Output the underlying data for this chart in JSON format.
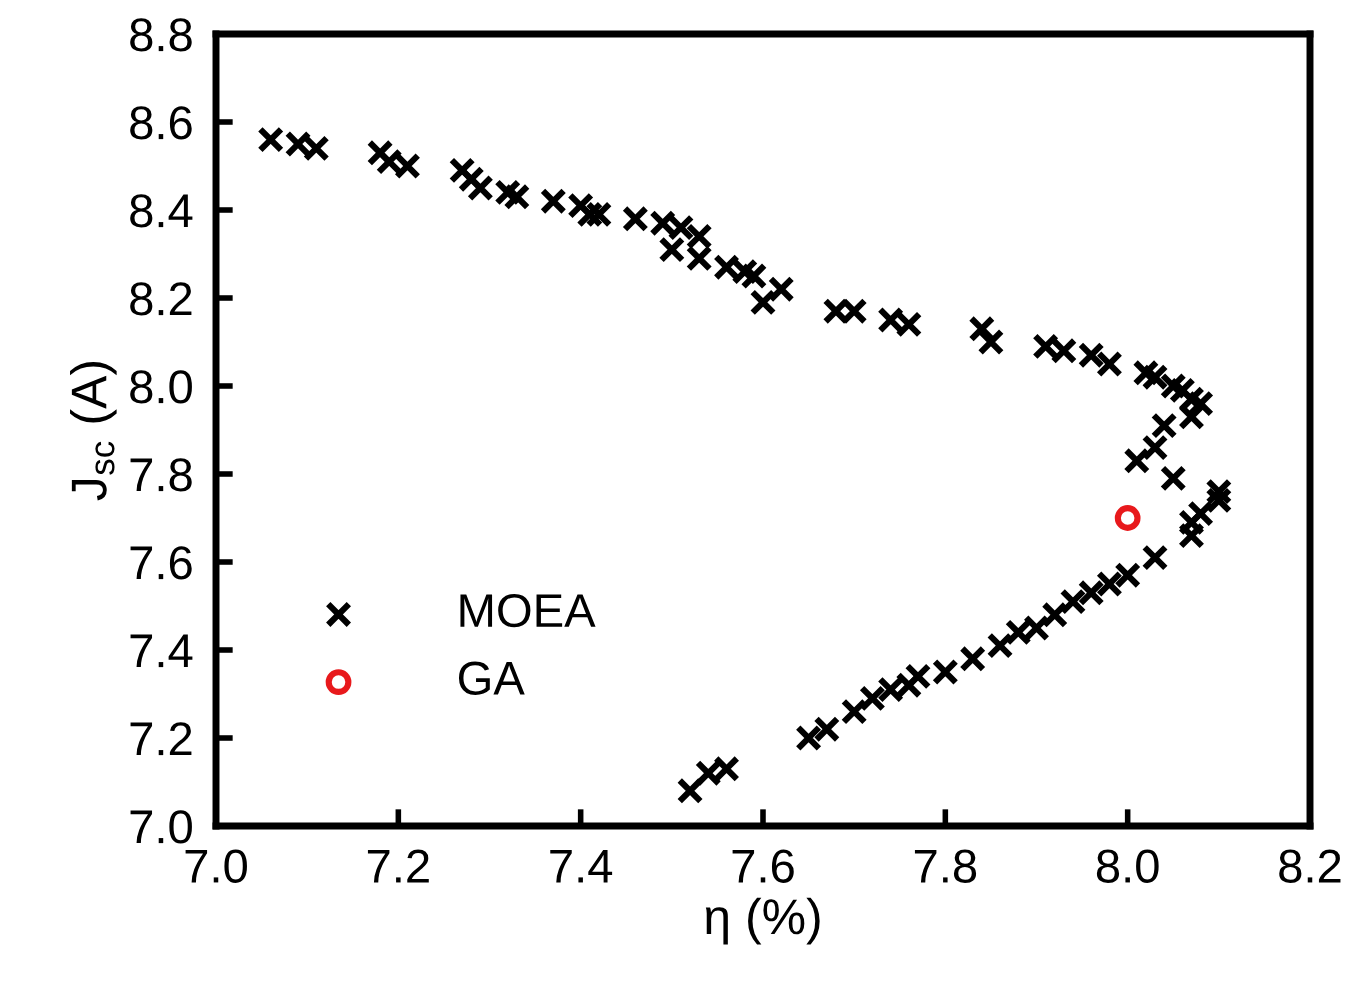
{
  "chart_data": {
    "type": "scatter",
    "xlabel": "η (%)",
    "ylabel": "J$_{sc}$ (A)",
    "xlim": [
      7.0,
      8.2
    ],
    "xticks": [
      {
        "value": 7.0,
        "label": "7.0"
      },
      {
        "value": 7.2,
        "label": "7.2"
      },
      {
        "value": 7.4,
        "label": "7.4"
      },
      {
        "value": 7.6,
        "label": "7.6"
      },
      {
        "value": 7.8,
        "label": "7.8"
      },
      {
        "value": 8.0,
        "label": "8.0"
      },
      {
        "value": 8.2,
        "label": "8.2"
      }
    ],
    "ylim": [
      7.0,
      8.8
    ],
    "yticks": [
      {
        "value": 7.0,
        "label": "7.0"
      },
      {
        "value": 7.2,
        "label": "7.2"
      },
      {
        "value": 7.4,
        "label": "7.4"
      },
      {
        "value": 7.6,
        "label": "7.6"
      },
      {
        "value": 7.8,
        "label": "7.8"
      },
      {
        "value": 8.0,
        "label": "8.0"
      },
      {
        "value": 8.2,
        "label": "8.2"
      },
      {
        "value": 8.4,
        "label": "8.4"
      },
      {
        "value": 8.6,
        "label": "8.6"
      },
      {
        "value": 8.8,
        "label": "8.8"
      }
    ],
    "grid": false,
    "legend": "bottom left",
    "series": [
      {
        "name": "MOEA",
        "color": "#000000",
        "marker": "cross",
        "x": [
          7.06,
          7.09,
          7.11,
          7.18,
          7.19,
          7.21,
          7.27,
          7.28,
          7.29,
          7.32,
          7.33,
          7.37,
          7.4,
          7.41,
          7.42,
          7.46,
          7.49,
          7.51,
          7.53,
          7.5,
          7.53,
          7.56,
          7.58,
          7.59,
          7.62,
          7.6,
          7.68,
          7.7,
          7.74,
          7.76,
          7.84,
          7.85,
          7.91,
          7.93,
          7.96,
          7.98,
          8.02,
          8.03,
          8.05,
          8.06,
          8.07,
          8.08,
          8.07,
          8.04,
          8.03,
          8.01,
          8.05,
          8.1,
          8.1,
          8.08,
          8.07,
          8.07,
          8.03,
          8.0,
          7.98,
          7.96,
          7.94,
          7.92,
          7.9,
          7.88,
          7.86,
          7.83,
          7.8,
          7.77,
          7.76,
          7.74,
          7.72,
          7.7,
          7.67,
          7.65,
          7.56,
          7.54,
          7.52
        ],
        "values": [
          8.56,
          8.55,
          8.54,
          8.53,
          8.51,
          8.5,
          8.49,
          8.47,
          8.45,
          8.44,
          8.43,
          8.42,
          8.41,
          8.39,
          8.39,
          8.38,
          8.37,
          8.36,
          8.34,
          8.31,
          8.29,
          8.27,
          8.26,
          8.25,
          8.22,
          8.19,
          8.17,
          8.17,
          8.15,
          8.14,
          8.13,
          8.1,
          8.09,
          8.08,
          8.07,
          8.05,
          8.03,
          8.02,
          8.0,
          7.99,
          7.97,
          7.96,
          7.93,
          7.91,
          7.86,
          7.83,
          7.79,
          7.76,
          7.74,
          7.71,
          7.69,
          7.66,
          7.61,
          7.57,
          7.55,
          7.53,
          7.51,
          7.48,
          7.45,
          7.44,
          7.41,
          7.38,
          7.35,
          7.34,
          7.32,
          7.31,
          7.29,
          7.26,
          7.22,
          7.2,
          7.13,
          7.12,
          7.08
        ]
      },
      {
        "name": "GA",
        "color": "#e8191c",
        "marker": "circle",
        "x": [
          8.0
        ],
        "values": [
          7.7
        ]
      }
    ]
  }
}
